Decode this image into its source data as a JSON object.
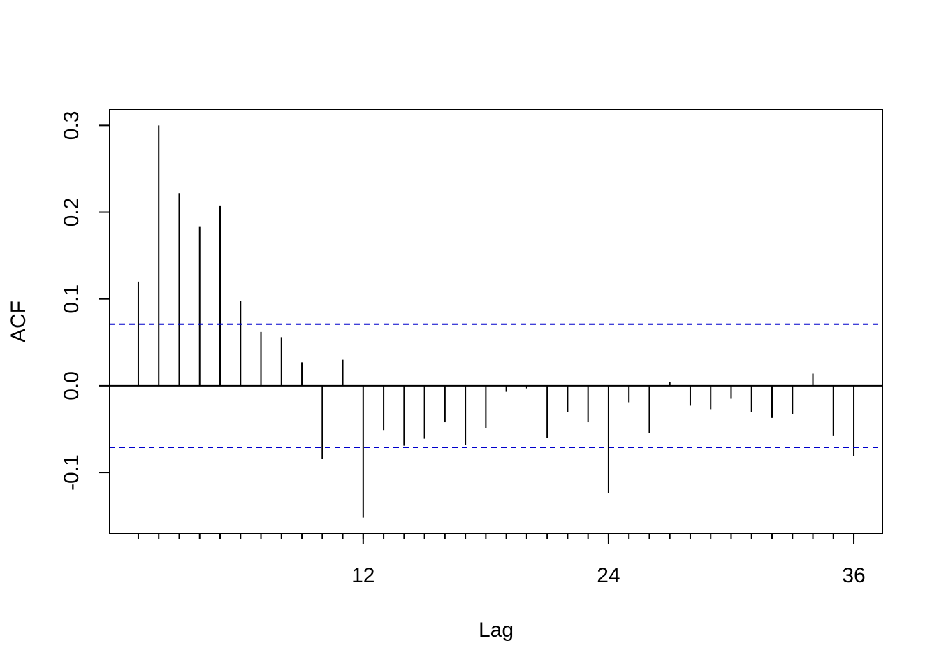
{
  "chart_data": {
    "type": "bar",
    "title": "",
    "xlabel": "Lag",
    "ylabel": "ACF",
    "xlim": [
      -0.4,
      37.4
    ],
    "ylim": [
      -0.17,
      0.318
    ],
    "x_ticks": [
      12,
      24,
      36
    ],
    "y_ticks": [
      -0.1,
      0.0,
      0.1,
      0.2,
      0.3
    ],
    "y_tick_labels": [
      "-0.1",
      "0.0",
      "0.1",
      "0.2",
      "0.3"
    ],
    "confidence_bound": 0.071,
    "confidence_color": "#0000cc",
    "grid": false,
    "lags": [
      1,
      2,
      3,
      4,
      5,
      6,
      7,
      8,
      9,
      10,
      11,
      12,
      13,
      14,
      15,
      16,
      17,
      18,
      19,
      20,
      21,
      22,
      23,
      24,
      25,
      26,
      27,
      28,
      29,
      30,
      31,
      32,
      33,
      34,
      35,
      36
    ],
    "values": [
      0.12,
      0.3,
      0.222,
      0.183,
      0.207,
      0.098,
      0.062,
      0.056,
      0.027,
      -0.084,
      0.03,
      -0.152,
      -0.051,
      -0.069,
      -0.061,
      -0.042,
      -0.068,
      -0.049,
      -0.007,
      -0.003,
      -0.06,
      -0.03,
      -0.042,
      -0.124,
      -0.019,
      -0.054,
      0.004,
      -0.023,
      -0.027,
      -0.015,
      -0.03,
      -0.037,
      -0.033,
      0.014,
      -0.058,
      -0.081
    ]
  }
}
